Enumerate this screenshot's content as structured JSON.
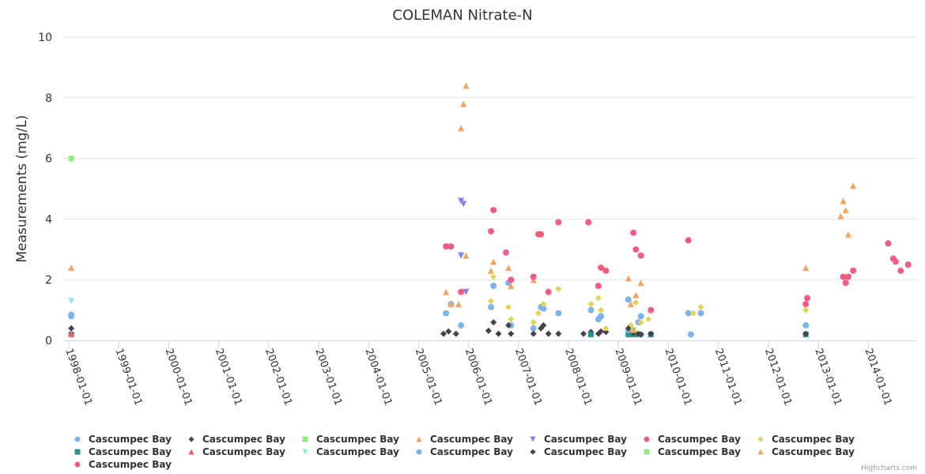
{
  "chart_data": {
    "type": "scatter",
    "title": "COLEMAN Nitrate-N",
    "xlabel": "",
    "ylabel": "Measurements (mg/L)",
    "ylim": [
      0,
      10
    ],
    "yticks": [
      "0",
      "2",
      "4",
      "6",
      "8",
      "10"
    ],
    "xlim": [
      1997.9,
      2015.0
    ],
    "xticks": [
      "1998-01-01",
      "1999-01-01",
      "2000-01-01",
      "2001-01-01",
      "2002-01-01",
      "2003-01-01",
      "2004-01-01",
      "2005-01-01",
      "2006-01-01",
      "2007-01-01",
      "2008-01-01",
      "2009-01-01",
      "2010-01-01",
      "2011-01-01",
      "2012-01-01",
      "2013-01-01",
      "2014-01-01"
    ],
    "grid": true,
    "legend_position": "bottom",
    "credits": "Highcharts.com",
    "series": [
      {
        "name": "Cascumpec Bay",
        "marker": "circle",
        "color": "#7cb5ec",
        "points": [
          [
            1998.05,
            0.85
          ],
          [
            1998.05,
            0.8
          ],
          [
            2005.55,
            0.9
          ],
          [
            2005.65,
            1.2
          ],
          [
            2005.85,
            0.5
          ],
          [
            2006.45,
            1.1
          ],
          [
            2006.5,
            1.8
          ],
          [
            2006.8,
            1.9
          ],
          [
            2006.85,
            0.5
          ],
          [
            2007.3,
            0.4
          ],
          [
            2007.45,
            1.1
          ],
          [
            2007.5,
            1.05
          ],
          [
            2007.8,
            0.9
          ],
          [
            2008.45,
            1.0
          ],
          [
            2008.6,
            0.7
          ],
          [
            2008.65,
            0.8
          ],
          [
            2009.2,
            1.35
          ],
          [
            2009.4,
            0.6
          ],
          [
            2009.45,
            0.8
          ],
          [
            2010.4,
            0.9
          ],
          [
            2010.45,
            0.2
          ],
          [
            2010.65,
            0.9
          ],
          [
            2012.75,
            0.5
          ]
        ]
      },
      {
        "name": "Cascumpec Bay",
        "marker": "diamond",
        "color": "#434348",
        "points": [
          [
            1998.05,
            0.4
          ],
          [
            2005.5,
            0.22
          ],
          [
            2005.6,
            0.3
          ],
          [
            2005.75,
            0.22
          ],
          [
            2006.4,
            0.32
          ],
          [
            2006.5,
            0.6
          ],
          [
            2006.6,
            0.22
          ],
          [
            2006.8,
            0.5
          ],
          [
            2006.85,
            0.22
          ],
          [
            2007.3,
            0.22
          ],
          [
            2007.45,
            0.4
          ],
          [
            2007.5,
            0.5
          ],
          [
            2007.6,
            0.22
          ],
          [
            2007.8,
            0.22
          ],
          [
            2008.3,
            0.22
          ],
          [
            2008.45,
            0.28
          ],
          [
            2008.6,
            0.22
          ],
          [
            2008.65,
            0.3
          ],
          [
            2008.75,
            0.28
          ]
        ]
      },
      {
        "name": "Cascumpec Bay",
        "marker": "square",
        "color": "#90ed7d",
        "points": [
          [
            1998.05,
            6.0
          ]
        ]
      },
      {
        "name": "Cascumpec Bay",
        "marker": "triangle",
        "color": "#f7a35c",
        "points": [
          [
            1998.05,
            2.4
          ],
          [
            2005.55,
            1.6
          ],
          [
            2005.65,
            1.2
          ],
          [
            2005.8,
            1.2
          ],
          [
            2005.85,
            7.0
          ],
          [
            2005.9,
            7.8
          ],
          [
            2005.95,
            8.4
          ],
          [
            2005.95,
            2.8
          ],
          [
            2006.45,
            2.3
          ],
          [
            2006.5,
            2.6
          ],
          [
            2006.8,
            2.4
          ],
          [
            2006.85,
            1.8
          ],
          [
            2007.3,
            2.0
          ],
          [
            2009.2,
            2.05
          ],
          [
            2009.35,
            1.5
          ],
          [
            2009.45,
            1.9
          ]
        ]
      },
      {
        "name": "Cascumpec Bay",
        "marker": "triangle-down",
        "color": "#8085e9",
        "points": [
          [
            2005.85,
            4.6
          ],
          [
            2005.9,
            4.5
          ],
          [
            2005.85,
            2.8
          ],
          [
            2005.95,
            1.6
          ]
        ]
      },
      {
        "name": "Cascumpec Bay",
        "marker": "circle",
        "color": "#f15c80",
        "points": [
          [
            2005.55,
            3.1
          ],
          [
            2005.65,
            3.1
          ],
          [
            2005.85,
            1.6
          ],
          [
            2006.45,
            3.6
          ],
          [
            2006.5,
            4.3
          ],
          [
            2006.75,
            2.9
          ],
          [
            2006.85,
            2.0
          ],
          [
            2007.3,
            2.1
          ],
          [
            2007.4,
            3.5
          ],
          [
            2007.45,
            3.5
          ],
          [
            2007.6,
            1.6
          ],
          [
            2007.8,
            3.9
          ],
          [
            2008.4,
            3.9
          ],
          [
            2008.6,
            1.8
          ],
          [
            2008.65,
            2.4
          ],
          [
            2008.75,
            2.3
          ],
          [
            2009.3,
            3.55
          ],
          [
            2009.35,
            3.0
          ],
          [
            2009.45,
            2.8
          ],
          [
            2009.65,
            1.0
          ],
          [
            2010.4,
            3.3
          ]
        ]
      },
      {
        "name": "Cascumpec Bay",
        "marker": "diamond",
        "color": "#e4d354",
        "points": [
          [
            2006.45,
            1.3
          ],
          [
            2006.5,
            2.1
          ],
          [
            2006.8,
            1.1
          ],
          [
            2006.85,
            0.7
          ],
          [
            2007.3,
            0.6
          ],
          [
            2007.4,
            0.9
          ],
          [
            2007.5,
            1.2
          ],
          [
            2007.8,
            1.7
          ],
          [
            2008.45,
            1.2
          ],
          [
            2008.6,
            1.4
          ],
          [
            2008.65,
            1.0
          ],
          [
            2008.75,
            0.4
          ],
          [
            2009.25,
            0.5
          ],
          [
            2009.35,
            1.25
          ],
          [
            2009.45,
            0.6
          ],
          [
            2009.6,
            0.7
          ],
          [
            2010.5,
            0.9
          ],
          [
            2010.65,
            1.1
          ],
          [
            2012.75,
            1.0
          ]
        ]
      },
      {
        "name": "Cascumpec Bay",
        "marker": "square",
        "color": "#2b908f",
        "points": [
          [
            1998.05,
            0.2
          ],
          [
            2008.45,
            0.2
          ],
          [
            2009.2,
            0.2
          ],
          [
            2009.3,
            0.2
          ],
          [
            2009.4,
            0.2
          ],
          [
            2009.65,
            0.2
          ],
          [
            2012.75,
            0.2
          ]
        ]
      },
      {
        "name": "Cascumpec Bay",
        "marker": "triangle",
        "color": "#f45b5b",
        "points": [
          [
            1998.05,
            0.22
          ]
        ]
      },
      {
        "name": "Cascumpec Bay",
        "marker": "triangle-down",
        "color": "#91e8e1",
        "points": [
          [
            1998.05,
            1.3
          ]
        ]
      },
      {
        "name": "Cascumpec Bay",
        "marker": "circle",
        "color": "#7cb5ec",
        "points": [
          [
            2009.2,
            0.35
          ],
          [
            2009.45,
            0.2
          ]
        ]
      },
      {
        "name": "Cascumpec Bay",
        "marker": "diamond",
        "color": "#434348",
        "points": [
          [
            2009.2,
            0.4
          ],
          [
            2009.3,
            0.25
          ],
          [
            2009.4,
            0.22
          ],
          [
            2009.45,
            0.2
          ],
          [
            2009.65,
            0.22
          ],
          [
            2012.75,
            0.22
          ]
        ]
      },
      {
        "name": "Cascumpec Bay",
        "marker": "square",
        "color": "#90ed7d",
        "points": [
          [
            2009.3,
            0.35
          ]
        ]
      },
      {
        "name": "Cascumpec Bay",
        "marker": "triangle",
        "color": "#f7a35c",
        "points": [
          [
            2009.25,
            1.2
          ],
          [
            2009.3,
            0.35
          ],
          [
            2012.75,
            2.4
          ],
          [
            2013.45,
            4.1
          ],
          [
            2013.5,
            4.6
          ],
          [
            2013.55,
            4.3
          ],
          [
            2013.6,
            3.5
          ],
          [
            2013.7,
            5.1
          ]
        ]
      },
      {
        "name": "Cascumpec Bay",
        "marker": "circle",
        "color": "#f15c80",
        "points": [
          [
            2012.75,
            1.2
          ],
          [
            2012.78,
            1.4
          ],
          [
            2013.5,
            2.1
          ],
          [
            2013.55,
            1.9
          ],
          [
            2013.6,
            2.1
          ],
          [
            2013.7,
            2.3
          ],
          [
            2014.4,
            3.2
          ],
          [
            2014.5,
            2.7
          ],
          [
            2014.55,
            2.6
          ],
          [
            2014.65,
            2.3
          ],
          [
            2014.8,
            2.5
          ]
        ]
      }
    ]
  }
}
